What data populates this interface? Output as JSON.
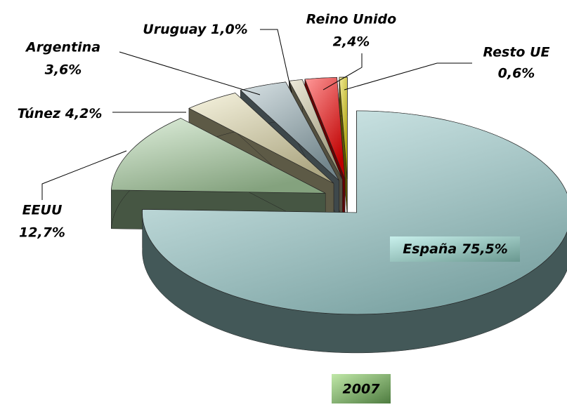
{
  "chart_data": {
    "type": "pie3d",
    "title": "2007",
    "categories": [
      "España",
      "EEUU",
      "Túnez",
      "Argentina",
      "Uruguay",
      "Reino Unido",
      "Resto UE"
    ],
    "values": [
      75.5,
      12.7,
      4.2,
      3.6,
      1.0,
      2.4,
      0.6
    ],
    "value_labels": [
      "75,5%",
      "12,7%",
      "4,2%",
      "3,6%",
      "1,0%",
      "2,4%",
      "0,6%"
    ],
    "colors": [
      "#a8dcdc",
      "#b0d8a8",
      "#e8e0b0",
      "#9ab4bc",
      "#d0c8a0",
      "#ff0000",
      "#e0d000"
    ]
  }
}
